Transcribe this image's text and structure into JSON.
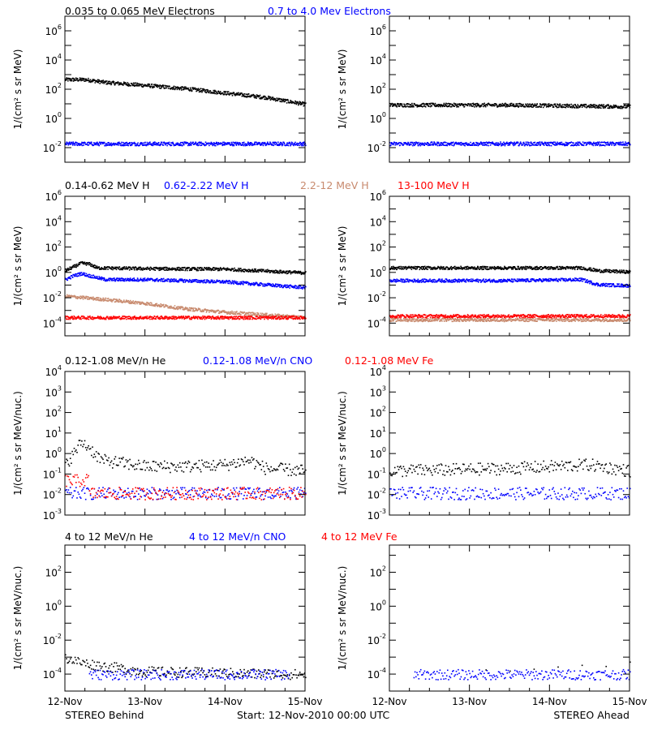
{
  "footer": {
    "left": "STEREO Behind",
    "center": "Start: 12-Nov-2010 00:00 UTC",
    "right": "STEREO Ahead"
  },
  "x_tick_labels": [
    "12-Nov",
    "13-Nov",
    "14-Nov",
    "15-Nov"
  ],
  "colors": {
    "black": "#000000",
    "blue": "#0000ff",
    "brown": "#c88a6e",
    "red": "#ff0000"
  },
  "rows": [
    {
      "id": "electrons",
      "legend": [
        {
          "text": "0.035 to 0.065 MeV Electrons",
          "color": "#000000"
        },
        {
          "text": "0.7 to 4.0 Mev Electrons",
          "color": "#0000ff"
        }
      ],
      "ylabel": "1/(cm² s sr MeV)"
    },
    {
      "id": "protons",
      "legend": [
        {
          "text": "0.14-0.62 MeV H",
          "color": "#000000"
        },
        {
          "text": "0.62-2.22 MeV H",
          "color": "#0000ff"
        },
        {
          "text": "2.2-12 MeV H",
          "color": "#c88a6e"
        },
        {
          "text": "13-100 MeV H",
          "color": "#ff0000"
        }
      ],
      "ylabel": "1/(cm² s sr MeV)"
    },
    {
      "id": "heavy-low",
      "legend": [
        {
          "text": "0.12-1.08 MeV/n He",
          "color": "#000000"
        },
        {
          "text": "0.12-1.08 MeV/n CNO",
          "color": "#0000ff"
        },
        {
          "text": "0.12-1.08 MeV Fe",
          "color": "#ff0000"
        }
      ],
      "ylabel": "1/(cm² s sr MeV/nuc.)"
    },
    {
      "id": "heavy-high",
      "legend": [
        {
          "text": "4 to 12 MeV/n He",
          "color": "#000000"
        },
        {
          "text": "4 to 12 MeV/n CNO",
          "color": "#0000ff"
        },
        {
          "text": "4 to 12 MeV Fe",
          "color": "#ff0000"
        }
      ],
      "ylabel": "1/(cm² s sr MeV/nuc.)"
    }
  ],
  "chart_data": [
    {
      "type": "scatter",
      "panel": "electrons-behind",
      "yscale": "log",
      "x_unit": "days since 12-Nov-2010 00:00 UTC",
      "xlim": [
        0,
        3
      ],
      "ylim_exp": [
        -3,
        7
      ],
      "y_tick_exponents": [
        -2,
        0,
        2,
        4,
        6
      ],
      "series": [
        {
          "name": "0.035 to 0.065 MeV Electrons",
          "color": "#000000",
          "points": [
            [
              0,
              500
            ],
            [
              0.25,
              500
            ],
            [
              0.5,
              320
            ],
            [
              1.0,
              200
            ],
            [
              1.5,
              120
            ],
            [
              2.0,
              60
            ],
            [
              2.5,
              30
            ],
            [
              3.0,
              10
            ]
          ]
        },
        {
          "name": "0.7 to 4.0 Mev Electrons",
          "color": "#0000ff",
          "points": [
            [
              0,
              0.02
            ],
            [
              1.5,
              0.02
            ],
            [
              3.0,
              0.02
            ]
          ]
        }
      ]
    },
    {
      "type": "scatter",
      "panel": "electrons-ahead",
      "yscale": "log",
      "x_unit": "days since 12-Nov-2010 00:00 UTC",
      "xlim": [
        0,
        3
      ],
      "ylim_exp": [
        -3,
        7
      ],
      "y_tick_exponents": [
        -2,
        0,
        2,
        4,
        6
      ],
      "series": [
        {
          "name": "0.035 to 0.065 MeV Electrons",
          "color": "#000000",
          "points": [
            [
              0,
              9
            ],
            [
              1.5,
              9
            ],
            [
              3.0,
              7
            ]
          ]
        },
        {
          "name": "0.7 to 4.0 Mev Electrons",
          "color": "#0000ff",
          "points": [
            [
              0,
              0.02
            ],
            [
              1.5,
              0.02
            ],
            [
              3.0,
              0.02
            ]
          ]
        }
      ]
    },
    {
      "type": "scatter",
      "panel": "protons-behind",
      "yscale": "log",
      "x_unit": "days since 12-Nov-2010 00:00 UTC",
      "xlim": [
        0,
        3
      ],
      "ylim_exp": [
        -5,
        6
      ],
      "y_tick_exponents": [
        -4,
        -2,
        0,
        2,
        4,
        6
      ],
      "series": [
        {
          "name": "0.14-0.62 MeV H",
          "color": "#000000",
          "points": [
            [
              0,
              1.5
            ],
            [
              0.1,
              3
            ],
            [
              0.2,
              6
            ],
            [
              0.3,
              5
            ],
            [
              0.4,
              2.5
            ],
            [
              1.0,
              2.2
            ],
            [
              2.0,
              2.0
            ],
            [
              3.0,
              1.0
            ]
          ]
        },
        {
          "name": "0.62-2.22 MeV H",
          "color": "#0000ff",
          "points": [
            [
              0,
              0.3
            ],
            [
              0.1,
              0.6
            ],
            [
              0.2,
              0.9
            ],
            [
              0.3,
              0.6
            ],
            [
              0.5,
              0.3
            ],
            [
              1.0,
              0.3
            ],
            [
              2.0,
              0.2
            ],
            [
              3.0,
              0.07
            ]
          ]
        },
        {
          "name": "2.2-12 MeV H",
          "color": "#c88a6e",
          "points": [
            [
              0,
              0.015
            ],
            [
              0.5,
              0.008
            ],
            [
              1.0,
              0.004
            ],
            [
              1.5,
              0.0015
            ],
            [
              2.0,
              0.0008
            ],
            [
              2.5,
              0.0005
            ],
            [
              3.0,
              0.0003
            ]
          ]
        },
        {
          "name": "13-100 MeV H",
          "color": "#ff0000",
          "points": [
            [
              0,
              0.0003
            ],
            [
              1.5,
              0.0003
            ],
            [
              3.0,
              0.0003
            ]
          ]
        }
      ]
    },
    {
      "type": "scatter",
      "panel": "protons-ahead",
      "yscale": "log",
      "x_unit": "days since 12-Nov-2010 00:00 UTC",
      "xlim": [
        0,
        3
      ],
      "ylim_exp": [
        -5,
        6
      ],
      "y_tick_exponents": [
        -4,
        -2,
        0,
        2,
        4,
        6
      ],
      "series": [
        {
          "name": "0.14-0.62 MeV H",
          "color": "#000000",
          "points": [
            [
              0,
              2.5
            ],
            [
              1.5,
              2.5
            ],
            [
              2.4,
              2.5
            ],
            [
              2.6,
              1.5
            ],
            [
              3.0,
              1.2
            ]
          ]
        },
        {
          "name": "0.62-2.22 MeV H",
          "color": "#0000ff",
          "points": [
            [
              0,
              0.25
            ],
            [
              1.5,
              0.25
            ],
            [
              2.4,
              0.3
            ],
            [
              2.6,
              0.12
            ],
            [
              3.0,
              0.1
            ]
          ]
        },
        {
          "name": "2.2-12 MeV H",
          "color": "#c88a6e",
          "points": [
            [
              0,
              0.0002
            ],
            [
              1.5,
              0.0002
            ],
            [
              3.0,
              0.0002
            ]
          ]
        },
        {
          "name": "13-100 MeV H",
          "color": "#ff0000",
          "points": [
            [
              0,
              0.0004
            ],
            [
              1.5,
              0.0004
            ],
            [
              3.0,
              0.0004
            ]
          ]
        }
      ]
    },
    {
      "type": "scatter",
      "panel": "heavy-low-behind",
      "yscale": "log",
      "x_unit": "days since 12-Nov-2010 00:00 UTC",
      "xlim": [
        0,
        3
      ],
      "ylim_exp": [
        -3,
        4
      ],
      "y_tick_exponents": [
        -3,
        -2,
        -1,
        0,
        1,
        2,
        3,
        4
      ],
      "series": [
        {
          "name": "0.12-1.08 MeV/n He",
          "color": "#000000",
          "points": [
            [
              0,
              0.3
            ],
            [
              0.1,
              1
            ],
            [
              0.2,
              4
            ],
            [
              0.3,
              2
            ],
            [
              0.45,
              0.5
            ],
            [
              1.0,
              0.25
            ],
            [
              1.5,
              0.25
            ],
            [
              2.0,
              0.3
            ],
            [
              2.3,
              0.5
            ],
            [
              2.5,
              0.2
            ],
            [
              3.0,
              0.15
            ]
          ]
        },
        {
          "name": "0.12-1.08 MeV/n CNO",
          "color": "#0000ff",
          "points": [
            [
              0,
              0.012
            ],
            [
              3.0,
              0.012
            ]
          ]
        },
        {
          "name": "0.12-1.08 MeV Fe",
          "color": "#ff0000",
          "points": [
            [
              0.2,
              0.05
            ],
            [
              0.3,
              0.06
            ],
            [
              0,
              0.012
            ],
            [
              3.0,
              0.012
            ]
          ]
        }
      ]
    },
    {
      "type": "scatter",
      "panel": "heavy-low-ahead",
      "yscale": "log",
      "x_unit": "days since 12-Nov-2010 00:00 UTC",
      "xlim": [
        0,
        3
      ],
      "ylim_exp": [
        -3,
        4
      ],
      "y_tick_exponents": [
        -3,
        -2,
        -1,
        0,
        1,
        2,
        3,
        4
      ],
      "series": [
        {
          "name": "0.12-1.08 MeV/n He",
          "color": "#000000",
          "points": [
            [
              0,
              0.15
            ],
            [
              1.5,
              0.2
            ],
            [
              2.5,
              0.3
            ],
            [
              3.0,
              0.15
            ]
          ]
        },
        {
          "name": "0.12-1.08 MeV/n CNO",
          "color": "#0000ff",
          "points": [
            [
              0,
              0.012
            ],
            [
              3.0,
              0.012
            ]
          ]
        },
        {
          "name": "0.12-1.08 MeV Fe",
          "color": "#ff0000",
          "points": []
        }
      ]
    },
    {
      "type": "scatter",
      "panel": "heavy-high-behind",
      "yscale": "log",
      "x_unit": "days since 12-Nov-2010 00:00 UTC",
      "xlim": [
        0,
        3
      ],
      "ylim_exp": [
        -5,
        3.6
      ],
      "y_tick_exponents": [
        -4,
        -2,
        0,
        2
      ],
      "series": [
        {
          "name": "4 to 12 MeV/n He",
          "color": "#000000",
          "points": [
            [
              0,
              0.001
            ],
            [
              0.2,
              0.0005
            ],
            [
              0.5,
              0.0003
            ],
            [
              1.0,
              0.00015
            ],
            [
              3.0,
              0.0001
            ]
          ]
        },
        {
          "name": "4 to 12 MeV/n CNO",
          "color": "#0000ff",
          "points": [
            [
              0.3,
              0.0001
            ],
            [
              2.8,
              0.0001
            ]
          ]
        },
        {
          "name": "4 to 12 MeV Fe",
          "color": "#ff0000",
          "points": []
        }
      ]
    },
    {
      "type": "scatter",
      "panel": "heavy-high-ahead",
      "yscale": "log",
      "x_unit": "days since 12-Nov-2010 00:00 UTC",
      "xlim": [
        0,
        3
      ],
      "ylim_exp": [
        -5,
        3.6
      ],
      "y_tick_exponents": [
        -4,
        -2,
        0,
        2
      ],
      "series": [
        {
          "name": "4 to 12 MeV/n He",
          "color": "#000000",
          "points": [
            [
              1.2,
              0.0002
            ],
            [
              2.0,
              0.0002
            ],
            [
              3.0,
              0.0003
            ]
          ]
        },
        {
          "name": "4 to 12 MeV/n CNO",
          "color": "#0000ff",
          "points": [
            [
              0.3,
              0.0001
            ],
            [
              3.0,
              0.0001
            ]
          ]
        },
        {
          "name": "4 to 12 MeV Fe",
          "color": "#ff0000",
          "points": []
        }
      ]
    }
  ]
}
